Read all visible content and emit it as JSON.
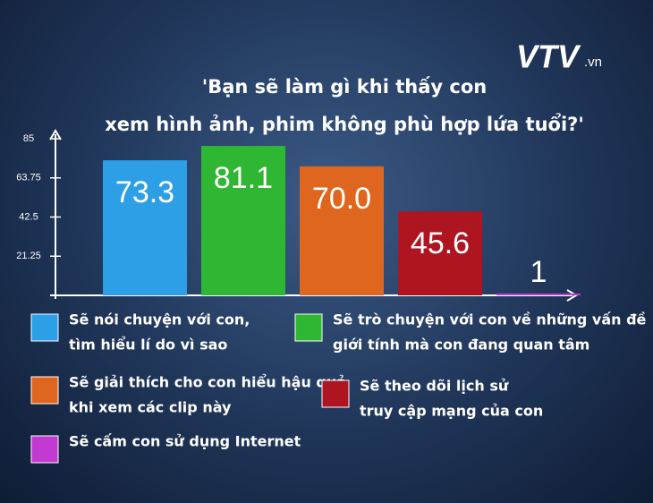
{
  "logo": "VTV",
  "logo_suffix": ".vn",
  "chart_data": {
    "type": "bar",
    "title_lines": [
      "'Bạn sẽ làm gì khi thấy con",
      "xem hình ảnh, phim không phù hợp lứa tuổi?'"
    ],
    "categories": [
      [
        "Sẽ nói chuyện với con,",
        "tìm hiểu lí do vì sao"
      ],
      [
        "Sẽ trò chuyện với con về những vấn đề",
        "giới tính mà con đang quan tâm"
      ],
      [
        "Sẽ giải thích cho con hiểu hậu quả",
        "khi xem các clip này"
      ],
      [
        "Sẽ theo dõi lịch sử",
        "truy cập mạng của con"
      ],
      [
        "Sẽ cấm con sử dụng Internet"
      ]
    ],
    "values": [
      73.3,
      81.1,
      70,
      45.6,
      1
    ],
    "value_labels": [
      "73.3",
      "81.1",
      "70.0",
      "45.6",
      "1"
    ],
    "colors": [
      "#2c9fe6",
      "#2fb632",
      "#df661e",
      "#ae1521",
      "#c23ad2"
    ],
    "ylim": [
      0,
      85
    ],
    "yticks": [
      21.25,
      42.5,
      63.75,
      85
    ]
  }
}
